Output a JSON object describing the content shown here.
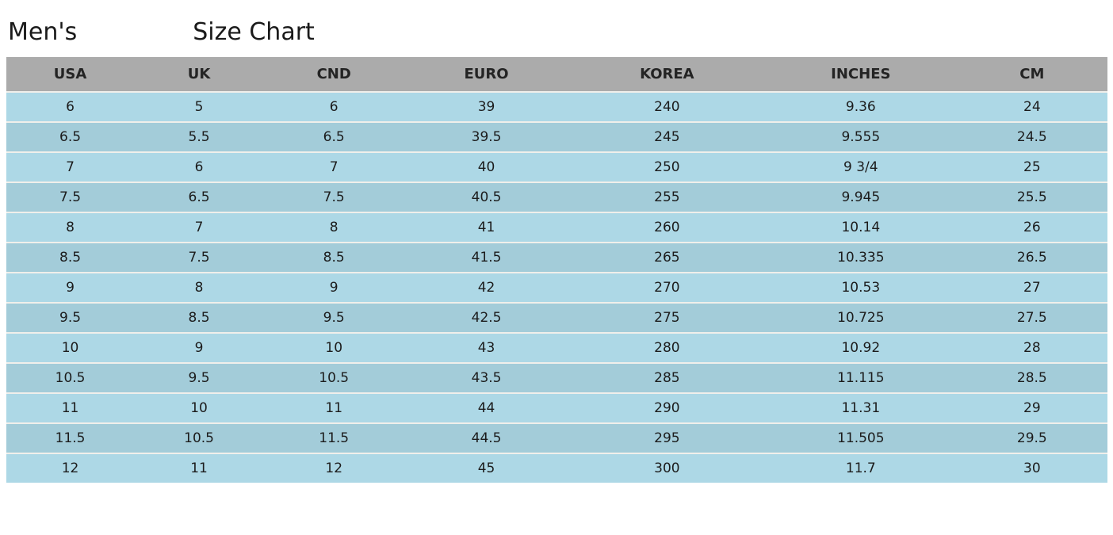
{
  "title": {
    "prefix": "Men's",
    "suffix": "Size Chart"
  },
  "colors": {
    "header_bg": "#ababab",
    "row_light": "#add8e6",
    "row_dark": "#a3ccd9",
    "separator": "#f0efeb",
    "text": "#1f1f1f"
  },
  "chart_data": {
    "type": "table",
    "title": "Men's Size Chart",
    "columns": [
      "USA",
      "UK",
      "CND",
      "EURO",
      "KOREA",
      "INCHES",
      "CM"
    ],
    "rows": [
      [
        "6",
        "5",
        "6",
        "39",
        "240",
        "9.36",
        "24"
      ],
      [
        "6.5",
        "5.5",
        "6.5",
        "39.5",
        "245",
        "9.555",
        "24.5"
      ],
      [
        "7",
        "6",
        "7",
        "40",
        "250",
        "9 3/4",
        "25"
      ],
      [
        "7.5",
        "6.5",
        "7.5",
        "40.5",
        "255",
        "9.945",
        "25.5"
      ],
      [
        "8",
        "7",
        "8",
        "41",
        "260",
        "10.14",
        "26"
      ],
      [
        "8.5",
        "7.5",
        "8.5",
        "41.5",
        "265",
        "10.335",
        "26.5"
      ],
      [
        "9",
        "8",
        "9",
        "42",
        "270",
        "10.53",
        "27"
      ],
      [
        "9.5",
        "8.5",
        "9.5",
        "42.5",
        "275",
        "10.725",
        "27.5"
      ],
      [
        "10",
        "9",
        "10",
        "43",
        "280",
        "10.92",
        "28"
      ],
      [
        "10.5",
        "9.5",
        "10.5",
        "43.5",
        "285",
        "11.115",
        "28.5"
      ],
      [
        "11",
        "10",
        "11",
        "44",
        "290",
        "11.31",
        "29"
      ],
      [
        "11.5",
        "10.5",
        "11.5",
        "44.5",
        "295",
        "11.505",
        "29.5"
      ],
      [
        "12",
        "11",
        "12",
        "45",
        "300",
        "11.7",
        "30"
      ]
    ]
  }
}
